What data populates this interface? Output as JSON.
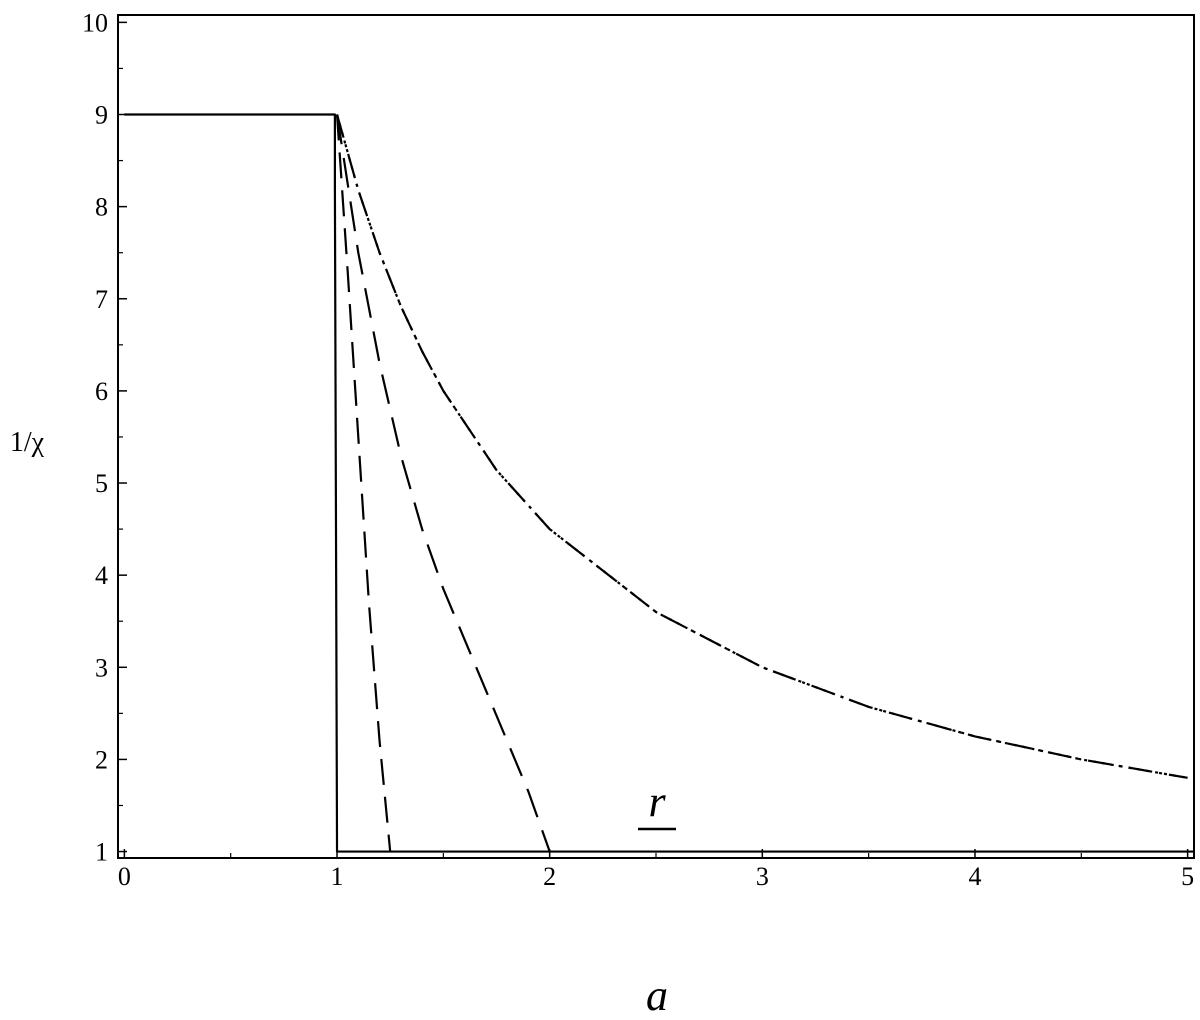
{
  "chart_data": {
    "type": "line",
    "title": "",
    "ylabel": "1/χ",
    "xlabel": {
      "numerator": "r",
      "denominator": "a"
    },
    "xlim": [
      -0.03,
      5.03
    ],
    "ylim": [
      0.93,
      10.08
    ],
    "x_ticks": [
      0,
      1,
      2,
      3,
      4,
      5
    ],
    "y_ticks": [
      1,
      2,
      3,
      4,
      5,
      6,
      7,
      8,
      9,
      10
    ],
    "x_minor_step": 0.5,
    "y_minor_step": 0.5,
    "grid": false,
    "legend": "none",
    "series": [
      {
        "style": "solid",
        "points": [
          [
            0,
            9
          ],
          [
            0.99,
            9
          ],
          [
            0.99,
            8.2
          ],
          [
            1.0,
            1
          ],
          [
            5.03,
            1
          ]
        ]
      },
      {
        "style": "long-dash",
        "points": [
          [
            1.0,
            9
          ],
          [
            1.05,
            7.3
          ],
          [
            1.1,
            5.5
          ],
          [
            1.15,
            3.7
          ],
          [
            1.2,
            2.2
          ],
          [
            1.25,
            1
          ]
        ]
      },
      {
        "style": "dash",
        "points": [
          [
            1.0,
            9
          ],
          [
            1.1,
            7.5
          ],
          [
            1.2,
            6.3
          ],
          [
            1.3,
            5.3
          ],
          [
            1.4,
            4.5
          ],
          [
            1.5,
            3.85
          ],
          [
            1.6,
            3.3
          ],
          [
            1.7,
            2.75
          ],
          [
            1.8,
            2.2
          ],
          [
            1.9,
            1.65
          ],
          [
            2.0,
            1.0
          ]
        ]
      },
      {
        "style": "dash-dot",
        "points": [
          [
            1.0,
            9
          ],
          [
            1.1,
            8.18
          ],
          [
            1.2,
            7.5
          ],
          [
            1.3,
            6.92
          ],
          [
            1.4,
            6.43
          ],
          [
            1.5,
            6.0
          ],
          [
            1.75,
            5.14
          ],
          [
            2.0,
            4.5
          ],
          [
            2.5,
            3.6
          ],
          [
            3.0,
            3.0
          ],
          [
            3.5,
            2.57
          ],
          [
            4.0,
            2.25
          ],
          [
            4.5,
            2.0
          ],
          [
            5.0,
            1.8
          ]
        ]
      },
      {
        "style": "dotted",
        "points": [
          [
            1.0,
            9
          ],
          [
            1.1,
            8.18
          ],
          [
            1.2,
            7.5
          ],
          [
            1.3,
            6.92
          ],
          [
            1.4,
            6.43
          ],
          [
            1.5,
            6.0
          ],
          [
            1.75,
            5.14
          ],
          [
            2.0,
            4.5
          ],
          [
            2.5,
            3.6
          ],
          [
            3.0,
            3.0
          ],
          [
            3.5,
            2.57
          ],
          [
            4.0,
            2.25
          ],
          [
            4.5,
            2.0
          ],
          [
            5.0,
            1.8
          ]
        ]
      }
    ]
  }
}
